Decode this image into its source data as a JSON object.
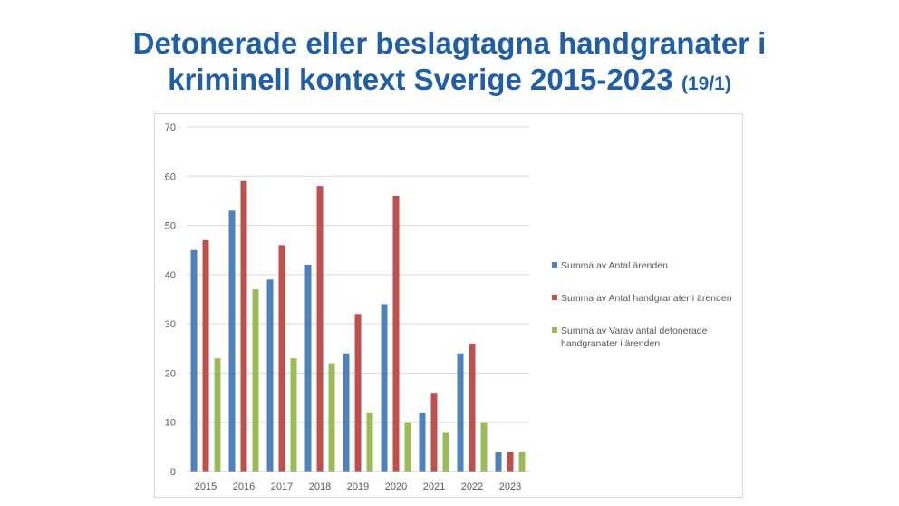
{
  "slide": {
    "title_line1": "Detonerade eller beslagtagna handgranater i",
    "title_line2": "kriminell kontext Sverige 2015-2023",
    "title_suffix": "(19/1)"
  },
  "chart_data": {
    "type": "bar",
    "categories": [
      "2015",
      "2016",
      "2017",
      "2018",
      "2019",
      "2020",
      "2021",
      "2022",
      "2023"
    ],
    "series": [
      {
        "name": "Summa av Antal ärenden",
        "color": "#4f81bd",
        "values": [
          45,
          53,
          39,
          42,
          24,
          34,
          12,
          24,
          4
        ]
      },
      {
        "name": "Summa av Antal handgranater i ärenden",
        "color": "#c0504d",
        "values": [
          47,
          59,
          46,
          58,
          32,
          56,
          16,
          26,
          4
        ]
      },
      {
        "name": "Summa av Varav antal detonerade handgranater i ärenden",
        "color": "#9bbb59",
        "values": [
          23,
          37,
          23,
          22,
          12,
          10,
          8,
          10,
          4
        ]
      }
    ],
    "legend_lines": [
      [
        "Summa av Antal ärenden"
      ],
      [
        "Summa av Antal handgranater i ärenden"
      ],
      [
        "Summa av Varav antal detonerade",
        "handgranater i ärenden"
      ]
    ],
    "ylim": [
      0,
      70
    ],
    "yticks": [
      "0",
      "10",
      "20",
      "30",
      "40",
      "50",
      "60",
      "70"
    ],
    "grid": true,
    "legend_position": "right"
  }
}
